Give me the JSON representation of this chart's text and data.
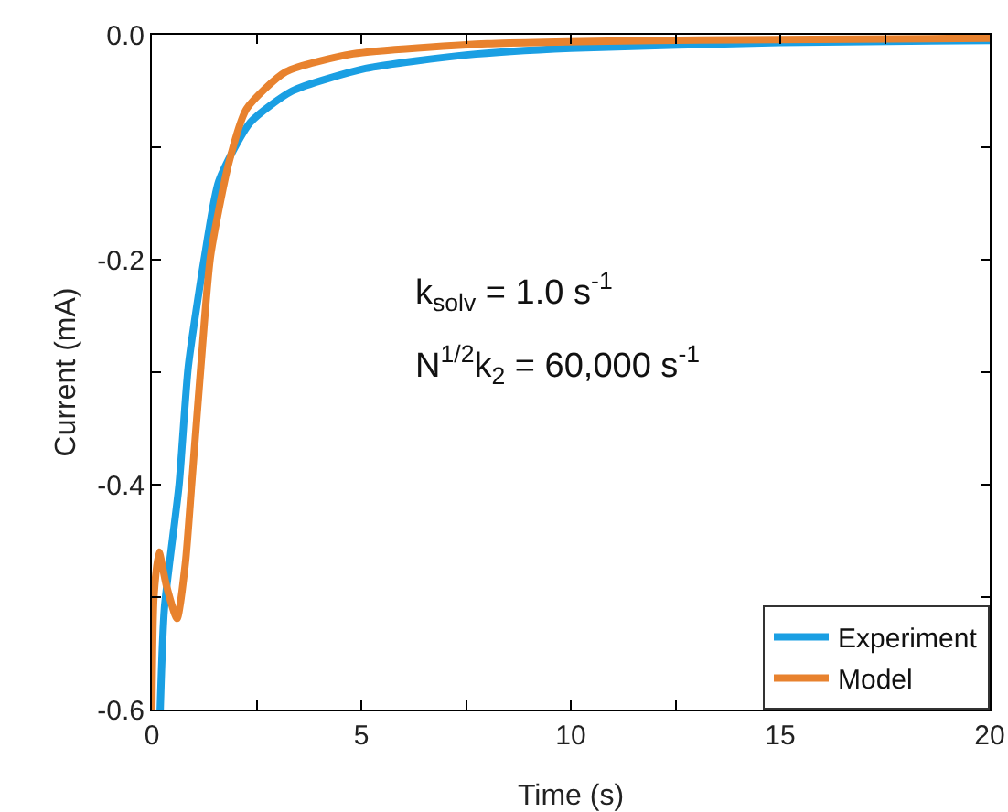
{
  "chart_data": {
    "type": "line",
    "xlabel": "Time (s)",
    "ylabel": "Current (mA)",
    "xlim": [
      0,
      20
    ],
    "ylim": [
      -0.6,
      0
    ],
    "xticks": [
      0,
      {
        "value": 2.5,
        "label": null
      },
      5,
      {
        "value": 7.5,
        "label": null
      },
      10,
      {
        "value": 12.5,
        "label": null
      },
      15,
      {
        "value": 17.5,
        "label": null
      },
      20
    ],
    "yticks": [
      {
        "value": -0.6,
        "label": "-0.6"
      },
      {
        "value": -0.5,
        "label": null
      },
      {
        "value": -0.4,
        "label": "-0.4"
      },
      {
        "value": -0.3,
        "label": null
      },
      {
        "value": -0.2,
        "label": "-0.2"
      },
      {
        "value": -0.1,
        "label": null
      },
      {
        "value": 0,
        "label": "0.0"
      }
    ],
    "grid": false,
    "legend": "bottom right",
    "line_style": "solid",
    "marker": "none",
    "annotations": [
      "k$_{solv}$ = 1.0 s$^{-1}$",
      "N$^{1/2}$k$_{2}$ = 60,000 s$^{-1}$"
    ],
    "series": [
      {
        "name": "Experiment",
        "color": "#1a9fe3",
        "x": [
          0.2,
          0.3,
          0.65,
          0.87,
          1.26,
          1.6,
          2.35,
          3.35,
          5.1,
          7.5,
          10,
          15,
          20
        ],
        "values": [
          -0.6,
          -0.51,
          -0.4,
          -0.295,
          -0.197,
          -0.13,
          -0.078,
          -0.05,
          -0.03,
          -0.018,
          -0.012,
          -0.007,
          -0.005
        ]
      },
      {
        "name": "Model",
        "color": "#e8822e",
        "x": [
          0,
          0.05,
          0.17,
          0.35,
          0.6,
          0.8,
          0.95,
          1.17,
          1.4,
          1.83,
          2.26,
          3.2,
          4.8,
          8,
          12,
          20
        ],
        "values": [
          -0.6,
          -0.5,
          -0.46,
          -0.49,
          -0.519,
          -0.47,
          -0.4,
          -0.295,
          -0.197,
          -0.115,
          -0.066,
          -0.033,
          -0.017,
          -0.008,
          -0.005,
          -0.003
        ]
      }
    ]
  }
}
